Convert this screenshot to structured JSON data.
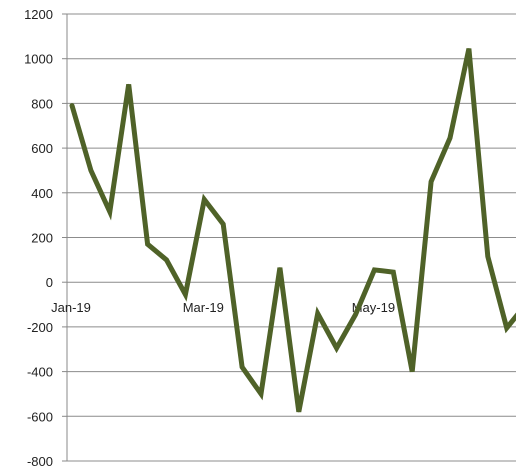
{
  "chart_data": {
    "type": "line",
    "title": "",
    "xlabel": "",
    "ylabel": "",
    "ylim": [
      -800,
      1200
    ],
    "yticks": [
      -800,
      -600,
      -400,
      -200,
      0,
      200,
      400,
      600,
      800,
      1000,
      1200
    ],
    "ytick_labels": [
      "-800",
      "-600",
      "-400",
      "-200",
      "0",
      "200",
      "400",
      "600",
      "800",
      "1000",
      "1200"
    ],
    "grid": "horizontal",
    "legend": "none",
    "line_color": "#4f6228",
    "x_tick_labels": [
      {
        "label": "Jan-19",
        "index": 0
      },
      {
        "label": "Mar-19",
        "index": 7
      },
      {
        "label": "May-19",
        "index": 16
      }
    ],
    "series": [
      {
        "values": [
          790,
          500,
          315,
          885,
          170,
          100,
          -55,
          370,
          260,
          -380,
          -500,
          65,
          -580,
          -140,
          -295,
          -145,
          55,
          45,
          -400,
          450,
          645,
          1045,
          115,
          -205,
          -100
        ]
      }
    ]
  }
}
